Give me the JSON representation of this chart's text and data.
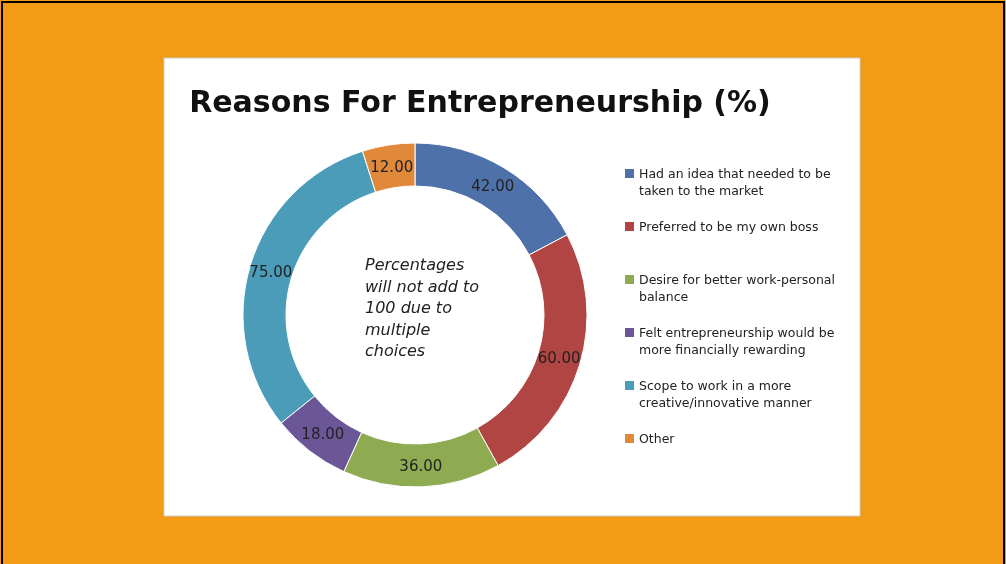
{
  "chart_data": {
    "type": "donut",
    "title": "Reasons For Entrepreneurship (%)",
    "categories": [
      "Had an idea that needed to be taken to the market",
      "Preferred to be my own boss",
      "Desire for better work-personal balance",
      "Felt entrepreneurship would be more financially rewarding",
      "Scope to work in a more creative/innovative manner",
      "Other"
    ],
    "values": [
      42,
      60,
      36,
      18,
      75,
      12
    ],
    "value_labels": [
      "42.00",
      "60.00",
      "36.00",
      "18.00",
      "75.00",
      "12.00"
    ],
    "colors": [
      "#4f71a9",
      "#b14543",
      "#8eab51",
      "#6b5798",
      "#4b9cb8",
      "#e0893b"
    ],
    "annotations": [
      "Percentages will not add to 100 due to multiple choices"
    ],
    "legend": "right"
  }
}
